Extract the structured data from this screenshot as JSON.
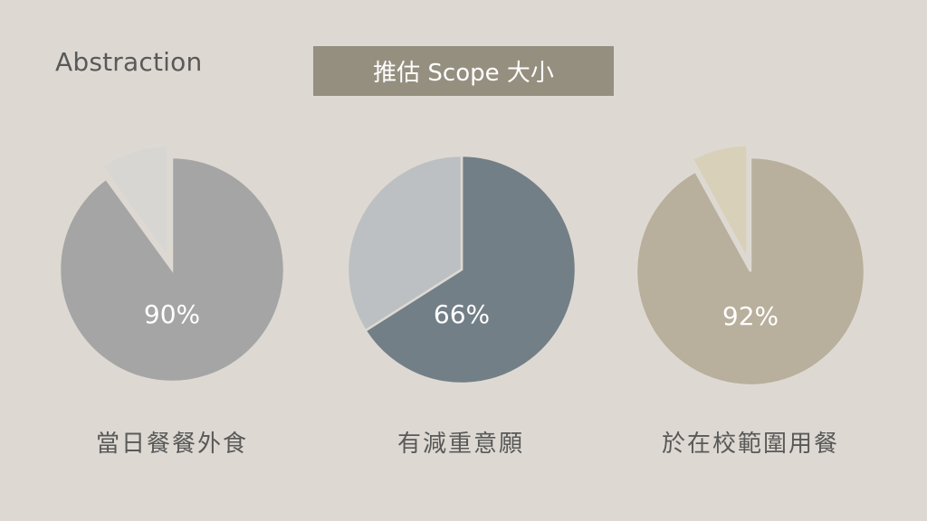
{
  "header": {
    "section_label": "Abstraction",
    "title": "推估 Scope 大小"
  },
  "chart_data": [
    {
      "type": "pie",
      "title": "當日餐餐外食",
      "value_label": "90%",
      "values": [
        90,
        10
      ],
      "colors": [
        "#a5a5a5",
        "#d7d6d3"
      ]
    },
    {
      "type": "pie",
      "title": "有減重意願",
      "value_label": "66%",
      "values": [
        66,
        34
      ],
      "colors": [
        "#737f87",
        "#bcc0c2"
      ]
    },
    {
      "type": "pie",
      "title": "於在校範圍用餐",
      "value_label": "92%",
      "values": [
        92,
        8
      ],
      "colors": [
        "#b8af9c",
        "#d8d0b9"
      ]
    }
  ]
}
